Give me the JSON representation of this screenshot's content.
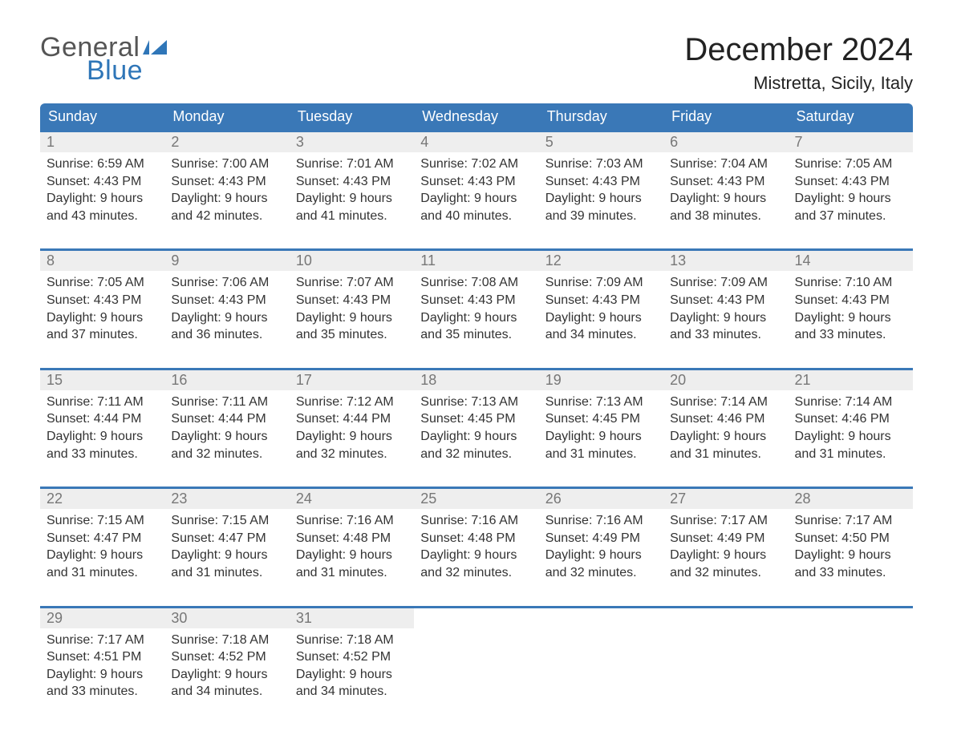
{
  "brand": {
    "word1": "General",
    "word2": "Blue",
    "flag_color": "#2f76b8",
    "word1_color": "#555555",
    "word2_color": "#2f76b8"
  },
  "header": {
    "title": "December 2024",
    "location": "Mistretta, Sicily, Italy"
  },
  "colors": {
    "header_bg": "#3a78b7",
    "header_text": "#ffffff",
    "daynum_bg": "#eeeeee",
    "daynum_text": "#777777",
    "row_border": "#3a78b7",
    "body_text": "#333333",
    "background": "#ffffff"
  },
  "columns": [
    "Sunday",
    "Monday",
    "Tuesday",
    "Wednesday",
    "Thursday",
    "Friday",
    "Saturday"
  ],
  "weeks": [
    [
      {
        "day": "1",
        "sunrise": "Sunrise: 6:59 AM",
        "sunset": "Sunset: 4:43 PM",
        "d1": "Daylight: 9 hours",
        "d2": "and 43 minutes."
      },
      {
        "day": "2",
        "sunrise": "Sunrise: 7:00 AM",
        "sunset": "Sunset: 4:43 PM",
        "d1": "Daylight: 9 hours",
        "d2": "and 42 minutes."
      },
      {
        "day": "3",
        "sunrise": "Sunrise: 7:01 AM",
        "sunset": "Sunset: 4:43 PM",
        "d1": "Daylight: 9 hours",
        "d2": "and 41 minutes."
      },
      {
        "day": "4",
        "sunrise": "Sunrise: 7:02 AM",
        "sunset": "Sunset: 4:43 PM",
        "d1": "Daylight: 9 hours",
        "d2": "and 40 minutes."
      },
      {
        "day": "5",
        "sunrise": "Sunrise: 7:03 AM",
        "sunset": "Sunset: 4:43 PM",
        "d1": "Daylight: 9 hours",
        "d2": "and 39 minutes."
      },
      {
        "day": "6",
        "sunrise": "Sunrise: 7:04 AM",
        "sunset": "Sunset: 4:43 PM",
        "d1": "Daylight: 9 hours",
        "d2": "and 38 minutes."
      },
      {
        "day": "7",
        "sunrise": "Sunrise: 7:05 AM",
        "sunset": "Sunset: 4:43 PM",
        "d1": "Daylight: 9 hours",
        "d2": "and 37 minutes."
      }
    ],
    [
      {
        "day": "8",
        "sunrise": "Sunrise: 7:05 AM",
        "sunset": "Sunset: 4:43 PM",
        "d1": "Daylight: 9 hours",
        "d2": "and 37 minutes."
      },
      {
        "day": "9",
        "sunrise": "Sunrise: 7:06 AM",
        "sunset": "Sunset: 4:43 PM",
        "d1": "Daylight: 9 hours",
        "d2": "and 36 minutes."
      },
      {
        "day": "10",
        "sunrise": "Sunrise: 7:07 AM",
        "sunset": "Sunset: 4:43 PM",
        "d1": "Daylight: 9 hours",
        "d2": "and 35 minutes."
      },
      {
        "day": "11",
        "sunrise": "Sunrise: 7:08 AM",
        "sunset": "Sunset: 4:43 PM",
        "d1": "Daylight: 9 hours",
        "d2": "and 35 minutes."
      },
      {
        "day": "12",
        "sunrise": "Sunrise: 7:09 AM",
        "sunset": "Sunset: 4:43 PM",
        "d1": "Daylight: 9 hours",
        "d2": "and 34 minutes."
      },
      {
        "day": "13",
        "sunrise": "Sunrise: 7:09 AM",
        "sunset": "Sunset: 4:43 PM",
        "d1": "Daylight: 9 hours",
        "d2": "and 33 minutes."
      },
      {
        "day": "14",
        "sunrise": "Sunrise: 7:10 AM",
        "sunset": "Sunset: 4:43 PM",
        "d1": "Daylight: 9 hours",
        "d2": "and 33 minutes."
      }
    ],
    [
      {
        "day": "15",
        "sunrise": "Sunrise: 7:11 AM",
        "sunset": "Sunset: 4:44 PM",
        "d1": "Daylight: 9 hours",
        "d2": "and 33 minutes."
      },
      {
        "day": "16",
        "sunrise": "Sunrise: 7:11 AM",
        "sunset": "Sunset: 4:44 PM",
        "d1": "Daylight: 9 hours",
        "d2": "and 32 minutes."
      },
      {
        "day": "17",
        "sunrise": "Sunrise: 7:12 AM",
        "sunset": "Sunset: 4:44 PM",
        "d1": "Daylight: 9 hours",
        "d2": "and 32 minutes."
      },
      {
        "day": "18",
        "sunrise": "Sunrise: 7:13 AM",
        "sunset": "Sunset: 4:45 PM",
        "d1": "Daylight: 9 hours",
        "d2": "and 32 minutes."
      },
      {
        "day": "19",
        "sunrise": "Sunrise: 7:13 AM",
        "sunset": "Sunset: 4:45 PM",
        "d1": "Daylight: 9 hours",
        "d2": "and 31 minutes."
      },
      {
        "day": "20",
        "sunrise": "Sunrise: 7:14 AM",
        "sunset": "Sunset: 4:46 PM",
        "d1": "Daylight: 9 hours",
        "d2": "and 31 minutes."
      },
      {
        "day": "21",
        "sunrise": "Sunrise: 7:14 AM",
        "sunset": "Sunset: 4:46 PM",
        "d1": "Daylight: 9 hours",
        "d2": "and 31 minutes."
      }
    ],
    [
      {
        "day": "22",
        "sunrise": "Sunrise: 7:15 AM",
        "sunset": "Sunset: 4:47 PM",
        "d1": "Daylight: 9 hours",
        "d2": "and 31 minutes."
      },
      {
        "day": "23",
        "sunrise": "Sunrise: 7:15 AM",
        "sunset": "Sunset: 4:47 PM",
        "d1": "Daylight: 9 hours",
        "d2": "and 31 minutes."
      },
      {
        "day": "24",
        "sunrise": "Sunrise: 7:16 AM",
        "sunset": "Sunset: 4:48 PM",
        "d1": "Daylight: 9 hours",
        "d2": "and 31 minutes."
      },
      {
        "day": "25",
        "sunrise": "Sunrise: 7:16 AM",
        "sunset": "Sunset: 4:48 PM",
        "d1": "Daylight: 9 hours",
        "d2": "and 32 minutes."
      },
      {
        "day": "26",
        "sunrise": "Sunrise: 7:16 AM",
        "sunset": "Sunset: 4:49 PM",
        "d1": "Daylight: 9 hours",
        "d2": "and 32 minutes."
      },
      {
        "day": "27",
        "sunrise": "Sunrise: 7:17 AM",
        "sunset": "Sunset: 4:49 PM",
        "d1": "Daylight: 9 hours",
        "d2": "and 32 minutes."
      },
      {
        "day": "28",
        "sunrise": "Sunrise: 7:17 AM",
        "sunset": "Sunset: 4:50 PM",
        "d1": "Daylight: 9 hours",
        "d2": "and 33 minutes."
      }
    ],
    [
      {
        "day": "29",
        "sunrise": "Sunrise: 7:17 AM",
        "sunset": "Sunset: 4:51 PM",
        "d1": "Daylight: 9 hours",
        "d2": "and 33 minutes."
      },
      {
        "day": "30",
        "sunrise": "Sunrise: 7:18 AM",
        "sunset": "Sunset: 4:52 PM",
        "d1": "Daylight: 9 hours",
        "d2": "and 34 minutes."
      },
      {
        "day": "31",
        "sunrise": "Sunrise: 7:18 AM",
        "sunset": "Sunset: 4:52 PM",
        "d1": "Daylight: 9 hours",
        "d2": "and 34 minutes."
      },
      null,
      null,
      null,
      null
    ]
  ]
}
